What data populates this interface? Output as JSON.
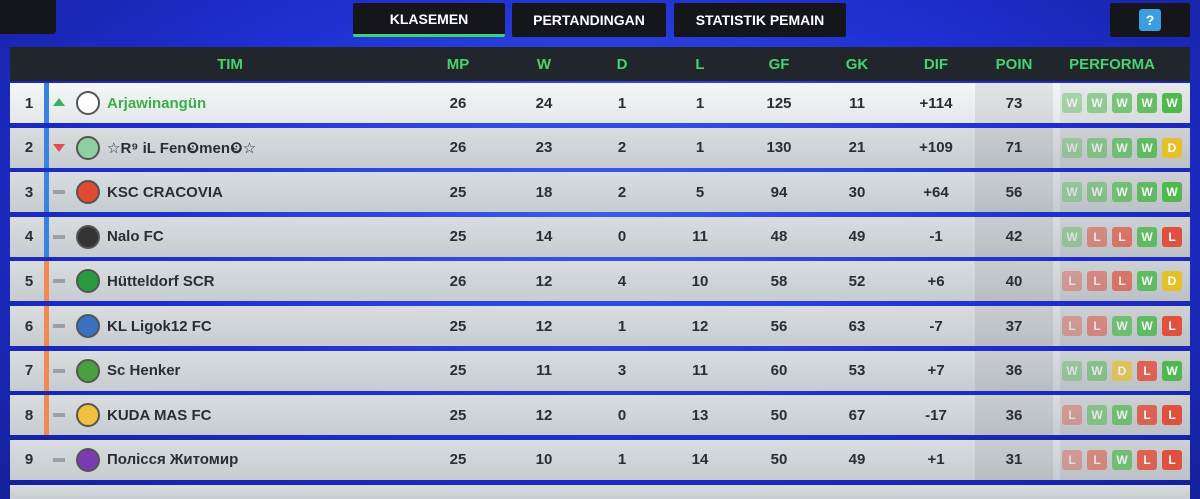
{
  "tabs": [
    "KLASEMEN",
    "PERTANDINGAN",
    "STATISTIK PEMAIN"
  ],
  "help": "?",
  "table": {
    "columns": [
      "TIM",
      "MP",
      "W",
      "D",
      "L",
      "GF",
      "GK",
      "DIF",
      "POIN",
      "PERFORMA"
    ],
    "rows": [
      {
        "rank": "1",
        "team": "Arjawinangün",
        "stats": [
          "26",
          "24",
          "1",
          "1",
          "125",
          "11",
          "+114",
          "73"
        ],
        "form": [
          "W",
          "W",
          "W",
          "W",
          "W"
        ]
      },
      {
        "rank": "2",
        "team": "☆R⁹ iL Fen❾men❾☆",
        "stats": [
          "26",
          "23",
          "2",
          "1",
          "130",
          "21",
          "+109",
          "71"
        ],
        "form": [
          "W",
          "W",
          "W",
          "W",
          "D"
        ]
      },
      {
        "rank": "3",
        "team": "KSC CRACOVIA",
        "stats": [
          "25",
          "18",
          "2",
          "5",
          "94",
          "30",
          "+64",
          "56"
        ],
        "form": [
          "W",
          "W",
          "W",
          "W",
          "W"
        ]
      },
      {
        "rank": "4",
        "team": "Nalo FC",
        "stats": [
          "25",
          "14",
          "0",
          "11",
          "48",
          "49",
          "-1",
          "42"
        ],
        "form": [
          "W",
          "L",
          "L",
          "W",
          "L"
        ]
      },
      {
        "rank": "5",
        "team": "Hütteldorf SCR",
        "stats": [
          "26",
          "12",
          "4",
          "10",
          "58",
          "52",
          "+6",
          "40"
        ],
        "form": [
          "L",
          "L",
          "L",
          "W",
          "D"
        ]
      },
      {
        "rank": "6",
        "team": "KL Ligok12 FC",
        "stats": [
          "25",
          "12",
          "1",
          "12",
          "56",
          "63",
          "-7",
          "37"
        ],
        "form": [
          "L",
          "L",
          "W",
          "W",
          "L"
        ]
      },
      {
        "rank": "7",
        "team": "Sc Henker",
        "stats": [
          "25",
          "11",
          "3",
          "11",
          "60",
          "53",
          "+7",
          "36"
        ],
        "form": [
          "W",
          "W",
          "D",
          "L",
          "W"
        ]
      },
      {
        "rank": "8",
        "team": "KUDA MAS FC",
        "stats": [
          "25",
          "12",
          "0",
          "13",
          "50",
          "67",
          "-17",
          "36"
        ],
        "form": [
          "L",
          "W",
          "W",
          "L",
          "L"
        ]
      },
      {
        "rank": "9",
        "team": "Полісся Житомир",
        "stats": [
          "25",
          "10",
          "1",
          "14",
          "50",
          "49",
          "+1",
          "31"
        ],
        "form": [
          "L",
          "L",
          "W",
          "L",
          "L"
        ]
      }
    ]
  }
}
